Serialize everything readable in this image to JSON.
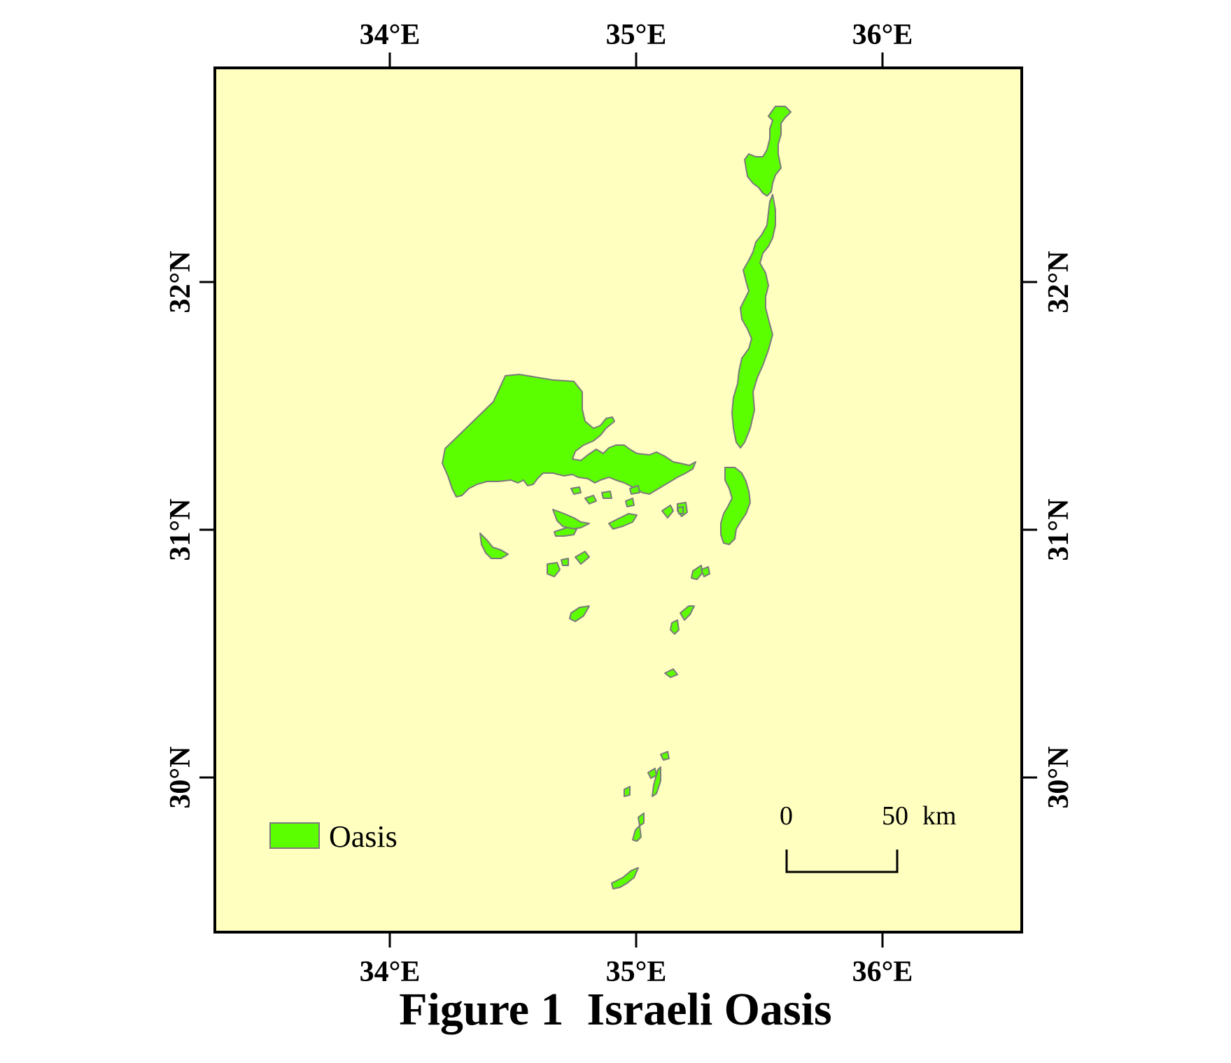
{
  "caption": "Figure 1  Israeli Oasis",
  "legend": {
    "label": "Oasis",
    "swatch_color": "#5cff00",
    "swatch_border": "#7a7a7a"
  },
  "map": {
    "background_color": "#ffffc0",
    "frame_color": "#000000",
    "feature_color": "#5cff00",
    "feature_outline": "#7a7a7a",
    "longitude_ticks": [
      {
        "value": 34,
        "label": "34°E"
      },
      {
        "value": 35,
        "label": "35°E"
      },
      {
        "value": 36,
        "label": "36°E"
      }
    ],
    "latitude_ticks": [
      {
        "value": 32,
        "label": "32°N"
      },
      {
        "value": 31,
        "label": "31°N"
      },
      {
        "value": 30,
        "label": "30°N"
      }
    ]
  },
  "scale_bar": {
    "start_label": "0",
    "end_label": "50",
    "unit": "km"
  }
}
